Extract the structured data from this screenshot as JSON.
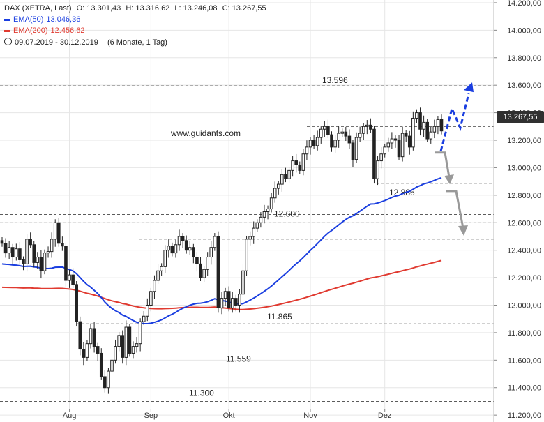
{
  "header": {
    "title": "DAX (XETRA, Last)",
    "open": "O: 13.301,43",
    "high": "H: 13.316,62",
    "low": "L: 13.246,08",
    "close": "C: 13.267,55",
    "ema50_label": "EMA(50)",
    "ema50_value": "13.046,36",
    "ema200_label": "EMA(200)",
    "ema200_value": "12.456,62",
    "range": "09.07.2019 - 30.12.2019",
    "range_note": "(6 Monate, 1 Tag)"
  },
  "watermark": "www.guidants.com",
  "last_price_label": "13.267,55",
  "colors": {
    "ema50": "#1a3ee0",
    "ema200": "#e03a30",
    "candle": "#222222",
    "arrow_up": "#1a3ee0",
    "arrow_down": "#999999",
    "grid": "#e6e6e6",
    "level_line": "#444444"
  },
  "chart_data": {
    "type": "candlestick",
    "instrument": "DAX (XETRA, Last)",
    "y_axis": {
      "side": "right",
      "min": 11150,
      "max": 14220,
      "ticks": [
        11200,
        11400,
        11600,
        11800,
        12000,
        12200,
        12400,
        12600,
        12800,
        13000,
        13200,
        13400,
        13600,
        13800,
        14000,
        14200
      ],
      "tick_labels": [
        "11.200,00",
        "11.400,00",
        "11.600,00",
        "11.800,00",
        "12.000,00",
        "12.200,00",
        "12.400,00",
        "12.600,00",
        "12.800,00",
        "13.000,00",
        "13.200,00",
        "13.400,00",
        "13.600,00",
        "13.800,00",
        "14.000,00",
        "14.200,00"
      ]
    },
    "x_axis": {
      "labels": [
        "Aug",
        "Sep",
        "Okt",
        "Nov",
        "Dez"
      ]
    },
    "grid": true,
    "closes": [
      12450,
      12380,
      12420,
      12350,
      12410,
      12330,
      12300,
      12480,
      12440,
      12310,
      12350,
      12250,
      12380,
      12390,
      12480,
      12600,
      12450,
      12430,
      12180,
      12220,
      12150,
      11880,
      11680,
      11620,
      11720,
      11830,
      11700,
      11650,
      11480,
      11400,
      11520,
      11600,
      11700,
      11780,
      11620,
      11840,
      11650,
      11700,
      11720,
      11880,
      11920,
      12000,
      12100,
      12180,
      12250,
      12280,
      12400,
      12430,
      12380,
      12440,
      12500,
      12470,
      12400,
      12420,
      12350,
      12300,
      12200,
      12260,
      12350,
      12420,
      12500,
      11980,
      12050,
      12100,
      11980,
      12050,
      12000,
      12080,
      12250,
      12480,
      12500,
      12560,
      12600,
      12640,
      12680,
      12700,
      12780,
      12850,
      12880,
      12950,
      12920,
      12980,
      13050,
      13020,
      12980,
      13100,
      13150,
      13200,
      13160,
      13220,
      13280,
      13300,
      13240,
      13150,
      13200,
      13250,
      13260,
      13230,
      13180,
      13060,
      13220,
      13250,
      13300,
      13310,
      13280,
      12920,
      13050,
      13100,
      13150,
      13180,
      13210,
      13200,
      13080,
      13250,
      13230,
      13150,
      13360,
      13400,
      13280,
      13330,
      13210,
      13260,
      13300,
      13350,
      13267.55
    ],
    "series": [
      {
        "name": "EMA(50)",
        "last": 13046.36
      },
      {
        "name": "EMA(200)",
        "last": 12456.62
      }
    ],
    "horizontal_levels": [
      13596,
      13390,
      13300,
      12886,
      12660,
      12600,
      11865,
      11559,
      11300
    ],
    "level_labels": [
      {
        "value": 13596,
        "text": "13.596"
      },
      {
        "value": 12886,
        "text": "12.886"
      },
      {
        "value": 12600,
        "text": "12.600"
      },
      {
        "value": 11865,
        "text": "11.865"
      },
      {
        "value": 11559,
        "text": "11.559"
      },
      {
        "value": 11300,
        "text": "11.300"
      }
    ],
    "projection_up": [
      13120,
      13430,
      13290,
      13600
    ],
    "projection_down_1": [
      13110,
      13110,
      12890
    ],
    "projection_down_2": [
      12830,
      12830,
      12520
    ]
  }
}
